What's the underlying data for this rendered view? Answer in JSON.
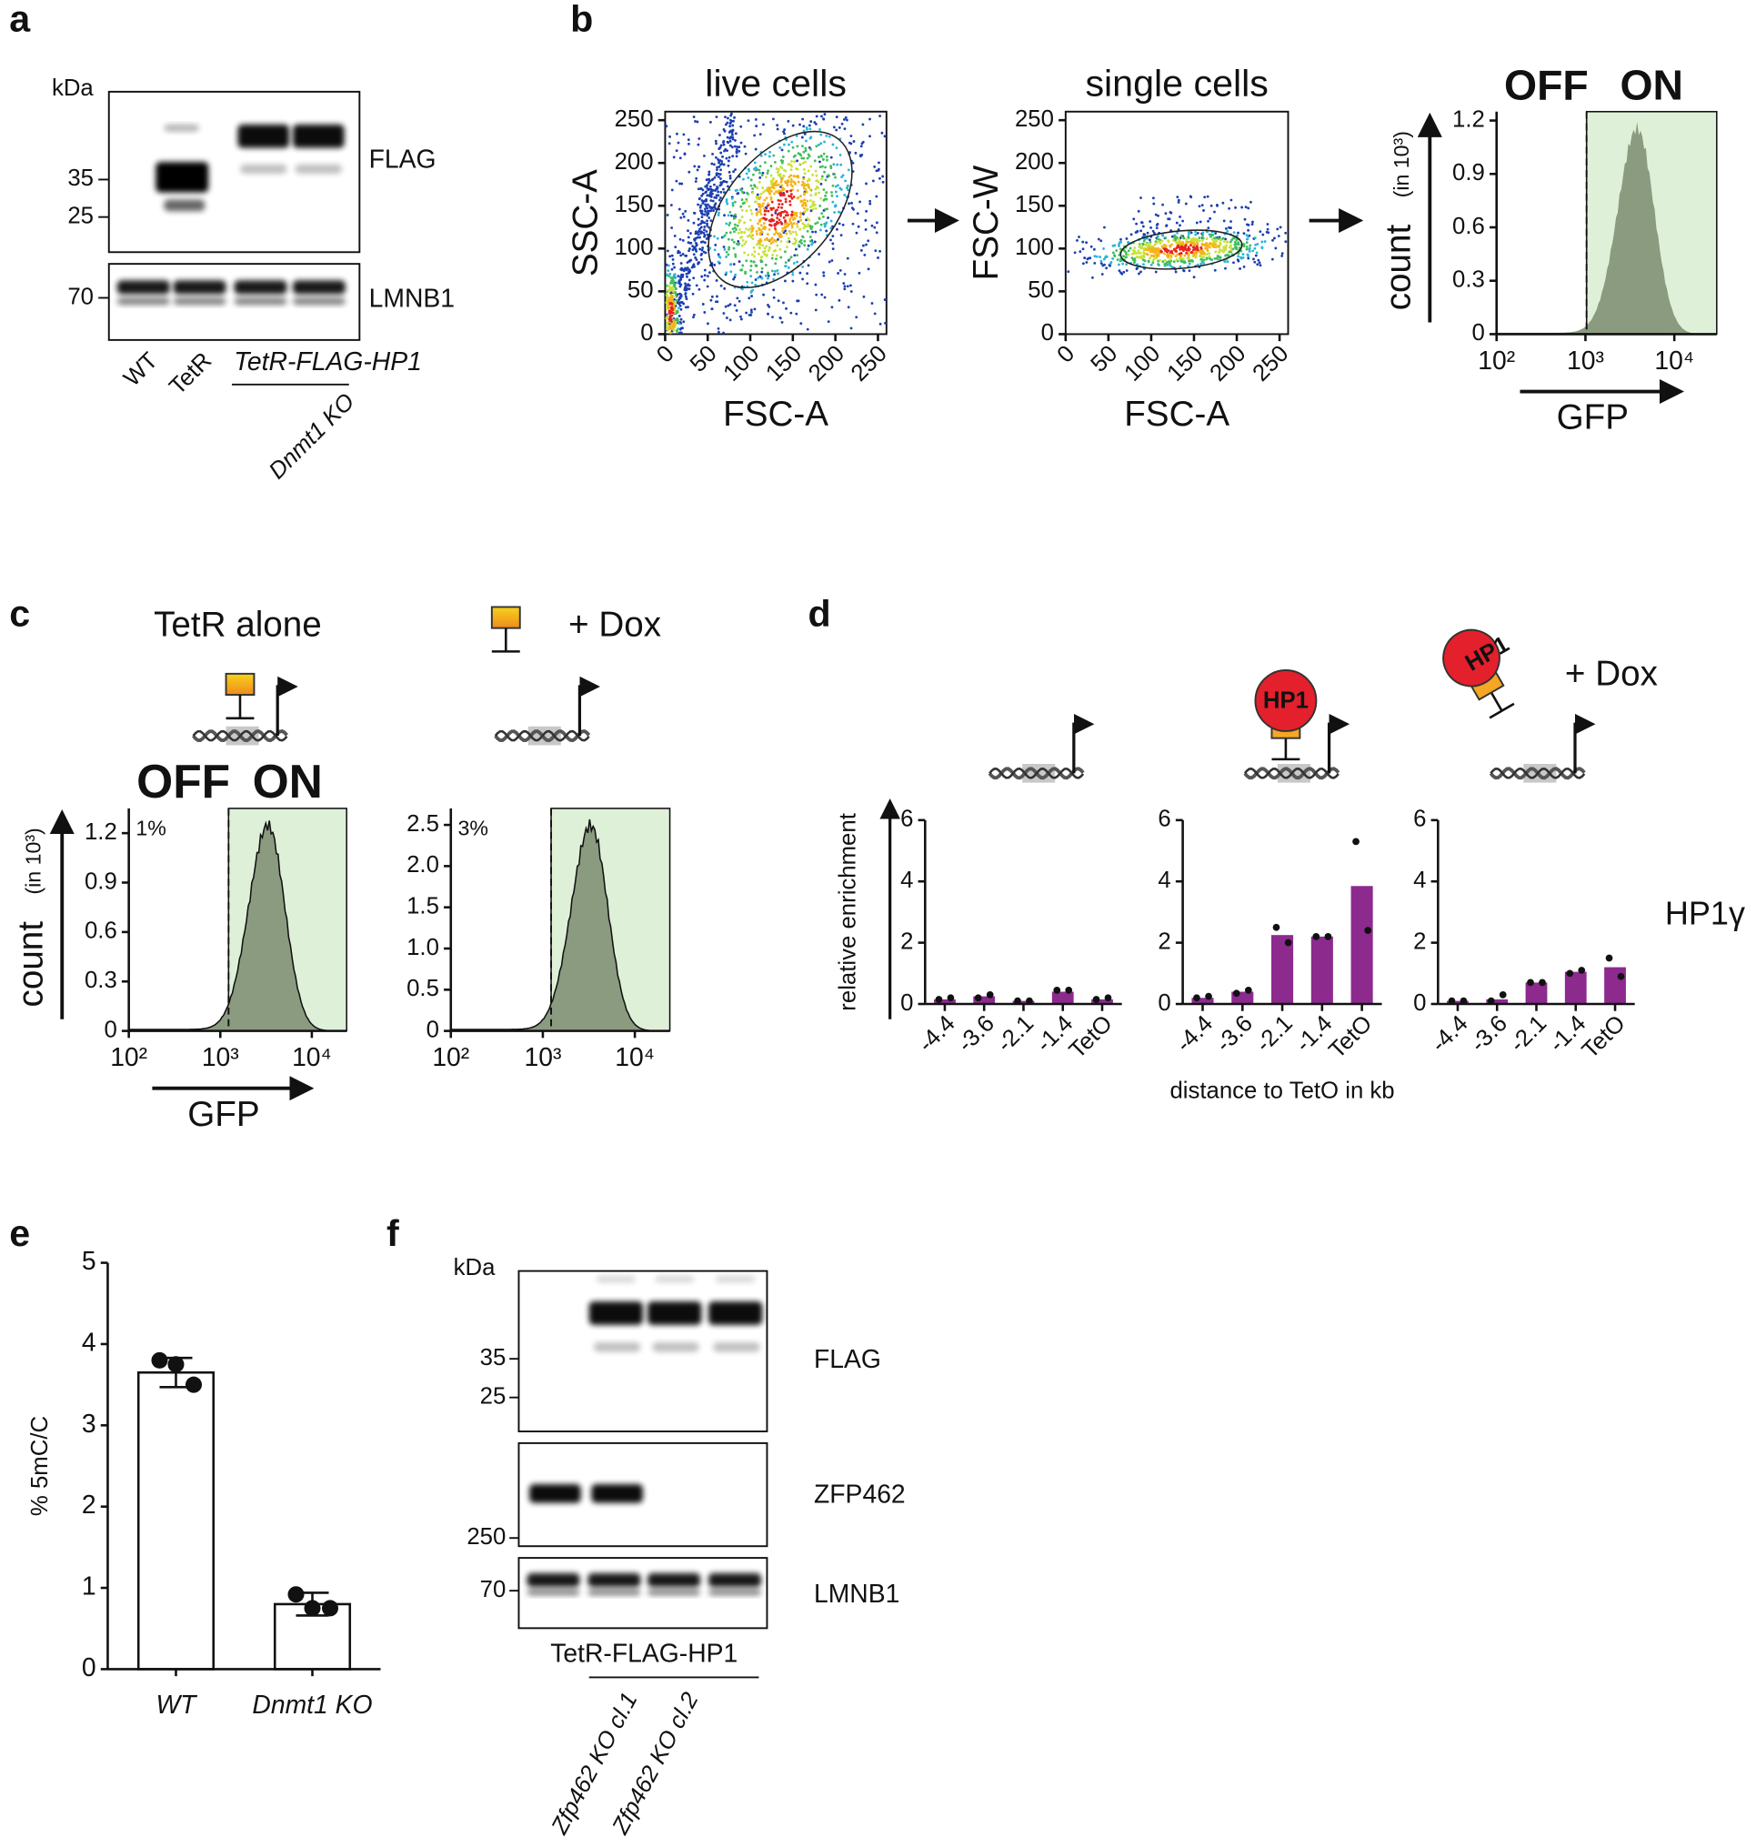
{
  "panel_labels": [
    "a",
    "b",
    "c",
    "d",
    "e",
    "f"
  ],
  "blot_a": {
    "unit": "kDa",
    "markers": [
      35,
      25,
      70
    ],
    "targets": [
      "FLAG",
      "LMNB1"
    ],
    "lanes": [
      "WT",
      "TetR"
    ],
    "construct": "TetR-FLAG-HP1",
    "background": "Dnmt1 KO"
  },
  "blot_f": {
    "unit": "kDa",
    "markers": [
      35,
      25,
      250,
      70
    ],
    "targets": [
      "FLAG",
      "ZFP462",
      "LMNB1"
    ],
    "construct": "TetR-FLAG-HP1",
    "lanes": [
      "Zfp462 KO cl.1",
      "Zfp462 KO cl.2"
    ]
  },
  "chart_data": [
    {
      "type": "density",
      "title": "live cells",
      "x_label": "FSC-A",
      "y_label": "SSC-A",
      "xlim": [
        0,
        260
      ],
      "ylim": [
        0,
        260
      ],
      "xticks": [
        0,
        50,
        100,
        150,
        200,
        250
      ],
      "yticks": [
        0,
        50,
        100,
        150,
        200,
        250
      ]
    },
    {
      "type": "density",
      "title": "single cells",
      "x_label": "FSC-A",
      "y_label": "FSC-W",
      "xlim": [
        0,
        260
      ],
      "ylim": [
        0,
        260
      ],
      "xticks": [
        0,
        50,
        100,
        150,
        200,
        250
      ],
      "yticks": [
        0,
        50,
        100,
        150,
        200,
        250
      ]
    },
    {
      "type": "histogram",
      "labels": [
        "OFF",
        "ON"
      ],
      "x_label": "GFP",
      "y_label": "count",
      "y_unit": "(in 10³)",
      "log_x": true,
      "xlim": [
        100,
        30000
      ],
      "ylim": [
        0,
        1.25
      ],
      "xticks": [
        {
          "value": 100,
          "label": "10²"
        },
        {
          "value": 1000,
          "label": "10³"
        },
        {
          "value": 10000,
          "label": "10⁴"
        }
      ],
      "yticks": [
        0,
        0.3,
        0.6,
        0.9,
        1.2
      ],
      "gate": 1030,
      "color": "#8a9b80",
      "gate_color": "#dff0d8"
    },
    {
      "type": "histogram",
      "title": "TetR alone",
      "labels": [
        "OFF",
        "ON"
      ],
      "annotation": "1%",
      "x_label": "GFP",
      "y_label": "count",
      "y_unit": "(in 10³)",
      "log_x": true,
      "xlim": [
        100,
        24000
      ],
      "ylim": [
        0,
        1.35
      ],
      "xticks": [
        {
          "value": 100,
          "label": "10²"
        },
        {
          "value": 1000,
          "label": "10³"
        },
        {
          "value": 10000,
          "label": "10⁴"
        }
      ],
      "yticks": [
        0,
        0.3,
        0.6,
        0.9,
        1.2
      ],
      "gate": 1230,
      "color": "#8a9b80",
      "gate_color": "#dff0d8"
    },
    {
      "type": "histogram",
      "title": "+ Dox",
      "annotation": "3%",
      "log_x": true,
      "xlim": [
        100,
        24000
      ],
      "ylim": [
        0,
        2.7
      ],
      "xticks": [
        {
          "value": 100,
          "label": "10²"
        },
        {
          "value": 1000,
          "label": "10³"
        },
        {
          "value": 10000,
          "label": "10⁴"
        }
      ],
      "yticks": [
        0,
        0.5,
        {
          "value": 1,
          "label": "1.0"
        },
        1.5,
        {
          "value": 2,
          "label": "2.0"
        },
        2.5
      ],
      "gate": 1230,
      "color": "#8a9b80",
      "gate_color": "#dff0d8"
    },
    {
      "type": "bar",
      "y_label": "relative enrichment",
      "categories": [
        "-4.4",
        "-3.6",
        "-2.1",
        "-1.4",
        "TetO"
      ],
      "values": [
        0.15,
        0.25,
        0.1,
        0.4,
        0.15
      ],
      "points": [
        [
          0.15,
          0.2
        ],
        [
          0.2,
          0.3
        ],
        [
          0.1,
          0.1
        ],
        [
          0.45,
          0.45
        ],
        [
          0.15,
          0.2
        ]
      ],
      "color": "#8c2a8e",
      "ylim": [
        0,
        6
      ],
      "yticks": [
        0,
        2,
        4,
        6
      ]
    },
    {
      "type": "bar",
      "x_label": "distance to TetO in kb",
      "icon_label": "HP1",
      "categories": [
        "-4.4",
        "-3.6",
        "-2.1",
        "-1.4",
        "TetO"
      ],
      "values": [
        0.2,
        0.4,
        2.25,
        2.2,
        3.85
      ],
      "points": [
        [
          0.2,
          0.25
        ],
        [
          0.35,
          0.45
        ],
        [
          2.5,
          2.0
        ],
        [
          2.2,
          2.2
        ],
        [
          5.3,
          2.4
        ]
      ],
      "color": "#8c2a8e",
      "ylim": [
        0,
        6
      ],
      "yticks": [
        0,
        2,
        4,
        6
      ]
    },
    {
      "type": "bar",
      "annotation": "+ Dox",
      "icon_label": "HP1",
      "side_label": "HP1γ",
      "categories": [
        "-4.4",
        "-3.6",
        "-2.1",
        "-1.4",
        "TetO"
      ],
      "values": [
        0.1,
        0.15,
        0.7,
        1.05,
        1.2
      ],
      "points": [
        [
          0.1,
          0.1
        ],
        [
          0.1,
          0.3
        ],
        [
          0.7,
          0.7
        ],
        [
          1.0,
          1.1
        ],
        [
          1.5,
          0.9
        ]
      ],
      "color": "#8c2a8e",
      "ylim": [
        0,
        6
      ],
      "yticks": [
        0,
        2,
        4,
        6
      ]
    },
    {
      "type": "bar",
      "y_label": "% 5mC/C",
      "categories": [
        "WT",
        "Dnmt1 KO"
      ],
      "values": [
        3.65,
        0.8
      ],
      "errors": [
        0.18,
        0.14
      ],
      "points": [
        [
          3.8,
          3.5,
          3.75
        ],
        [
          0.92,
          0.75,
          0.75
        ]
      ],
      "color": "#ffffff",
      "ylim": [
        0,
        5
      ],
      "yticks": [
        0,
        1,
        2,
        3,
        4,
        5
      ]
    }
  ]
}
